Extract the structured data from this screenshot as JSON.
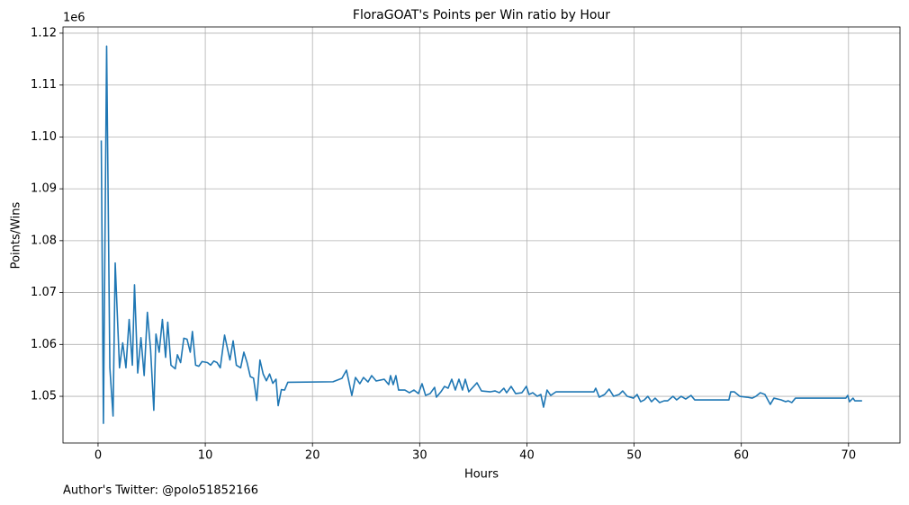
{
  "chart_data": {
    "type": "line",
    "title": "FloraGOAT's Points per Win ratio by Hour",
    "xlabel": "Hours",
    "ylabel": "Points/Wins",
    "y_offset": "1e6",
    "footnote": "Author's Twitter: @polo51852166",
    "color": "#1f77b4",
    "grid": true,
    "xlim": [
      -3.27,
      74.8
    ],
    "ylim": [
      1.041,
      1.1212
    ],
    "xticks": [
      0,
      10,
      20,
      30,
      40,
      50,
      60,
      70
    ],
    "yticks": [
      1.05,
      1.06,
      1.07,
      1.08,
      1.09,
      {
        "value": 1.1,
        "label": "1.10"
      },
      1.11,
      1.12
    ],
    "x": [
      0.3,
      0.5,
      0.8,
      1.1,
      1.4,
      1.6,
      2.0,
      2.3,
      2.6,
      2.9,
      3.2,
      3.4,
      3.7,
      4.0,
      4.3,
      4.6,
      4.9,
      5.2,
      5.4,
      5.7,
      6.0,
      6.3,
      6.5,
      6.8,
      7.2,
      7.4,
      7.7,
      8.0,
      8.3,
      8.6,
      8.8,
      9.1,
      9.4,
      9.7,
      10.2,
      10.5,
      10.8,
      11.1,
      11.4,
      11.8,
      12.3,
      12.6,
      12.9,
      13.3,
      13.6,
      13.9,
      14.2,
      14.5,
      14.8,
      15.1,
      15.4,
      15.7,
      16.0,
      16.3,
      16.6,
      16.8,
      17.1,
      17.4,
      17.7,
      21.91,
      22.75,
      23.17,
      23.67,
      24.01,
      24.42,
      24.76,
      25.18,
      25.52,
      25.94,
      26.69,
      27.11,
      27.28,
      27.53,
      27.78,
      28.03,
      28.62,
      29.04,
      29.46,
      29.88,
      30.22,
      30.55,
      30.97,
      31.39,
      31.56,
      31.98,
      32.31,
      32.65,
      32.99,
      33.32,
      33.66,
      33.99,
      34.25,
      34.58,
      35.34,
      35.76,
      36.6,
      37.02,
      37.43,
      37.85,
      38.11,
      38.53,
      38.95,
      39.53,
      39.95,
      40.2,
      40.54,
      40.96,
      41.3,
      41.55,
      41.88,
      42.22,
      42.72,
      46.25,
      46.42,
      46.75,
      47.25,
      47.67,
      48.09,
      48.6,
      48.93,
      49.35,
      49.94,
      50.28,
      50.61,
      50.95,
      51.28,
      51.62,
      51.96,
      52.38,
      52.8,
      53.13,
      53.63,
      53.97,
      54.39,
      54.81,
      55.31,
      55.65,
      58.84,
      59.01,
      59.34,
      59.85,
      60.52,
      61.02,
      61.36,
      61.78,
      62.2,
      62.7,
      63.04,
      63.71,
      64.13,
      64.38,
      64.71,
      65.05,
      69.75,
      69.92,
      70.09,
      70.42,
      70.59,
      71.26
    ],
    "values": [
      1.0993,
      1.0448,
      1.1175,
      1.0555,
      1.0462,
      1.0757,
      1.0555,
      1.0603,
      1.0555,
      1.0648,
      1.056,
      1.0715,
      1.0545,
      1.0613,
      1.054,
      1.0662,
      1.059,
      1.0473,
      1.062,
      1.0585,
      1.0648,
      1.0575,
      1.0643,
      1.056,
      1.0553,
      1.058,
      1.0565,
      1.0612,
      1.061,
      1.0585,
      1.0625,
      1.056,
      1.0558,
      1.0567,
      1.0565,
      1.056,
      1.0568,
      1.0565,
      1.0555,
      1.0618,
      1.057,
      1.0607,
      1.056,
      1.0555,
      1.0585,
      1.0565,
      1.0538,
      1.0535,
      1.0492,
      1.057,
      1.0543,
      1.053,
      1.0543,
      1.0525,
      1.0533,
      1.0482,
      1.0513,
      1.0512,
      1.0527,
      1.0528,
      1.05347,
      1.05503,
      1.05017,
      1.05364,
      1.05243,
      1.05364,
      1.05277,
      1.05399,
      1.05295,
      1.05329,
      1.05225,
      1.05399,
      1.05225,
      1.05399,
      1.05121,
      1.05121,
      1.05069,
      1.05121,
      1.05052,
      1.05243,
      1.05017,
      1.05052,
      1.05173,
      1.04983,
      1.05087,
      1.05191,
      1.05156,
      1.05329,
      1.05121,
      1.05329,
      1.05121,
      1.05329,
      1.05087,
      1.0526,
      1.05104,
      1.05087,
      1.05104,
      1.05069,
      1.05156,
      1.05069,
      1.05191,
      1.05052,
      1.05069,
      1.05191,
      1.05035,
      1.05069,
      1.05,
      1.05035,
      1.04792,
      1.05121,
      1.05017,
      1.05087,
      1.05087,
      1.05156,
      1.04983,
      1.05035,
      1.05139,
      1.05,
      1.05035,
      1.05104,
      1.05,
      1.04965,
      1.05035,
      1.04896,
      1.04931,
      1.05,
      1.04896,
      1.04965,
      1.04879,
      1.04913,
      1.04913,
      1.05,
      1.04931,
      1.05,
      1.04948,
      1.05017,
      1.04931,
      1.04931,
      1.05087,
      1.05087,
      1.05,
      1.04983,
      1.04965,
      1.05,
      1.05069,
      1.05035,
      1.04844,
      1.04965,
      1.04931,
      1.04896,
      1.04913,
      1.04879,
      1.04965,
      1.04965,
      1.05017,
      1.04896,
      1.04965,
      1.04913,
      1.04913
    ]
  }
}
